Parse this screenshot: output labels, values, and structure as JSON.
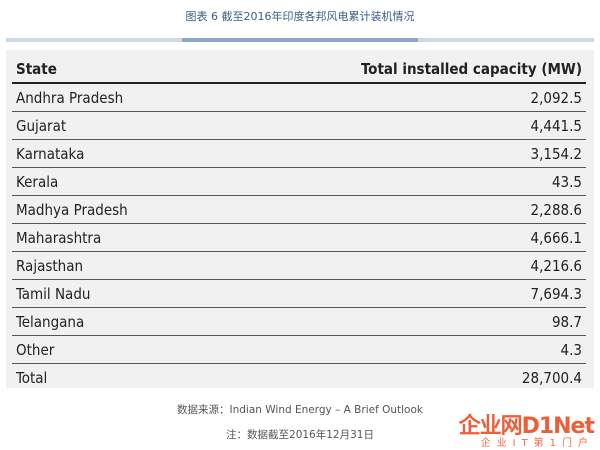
{
  "caption": "图表 6 截至2016年印度各邦风电累计装机情况",
  "table": {
    "headers": {
      "state": "State",
      "capacity": "Total installed capacity (MW)"
    },
    "rows": [
      {
        "state": "Andhra Pradesh",
        "capacity": "2,092.5"
      },
      {
        "state": "Gujarat",
        "capacity": "4,441.5"
      },
      {
        "state": "Karnataka",
        "capacity": "3,154.2"
      },
      {
        "state": "Kerala",
        "capacity": "43.5"
      },
      {
        "state": "Madhya Pradesh",
        "capacity": "2,288.6"
      },
      {
        "state": "Maharashtra",
        "capacity": "4,666.1"
      },
      {
        "state": "Rajasthan",
        "capacity": "4,216.6"
      },
      {
        "state": "Tamil Nadu",
        "capacity": "7,694.3"
      },
      {
        "state": "Telangana",
        "capacity": "98.7"
      },
      {
        "state": "Other",
        "capacity": "4.3"
      }
    ],
    "total": {
      "state": "Total",
      "capacity": "28,700.4"
    }
  },
  "source": "数据来源：Indian Wind Energy – A Brief Outlook",
  "note": "注：数据截至2016年12月31日",
  "watermark": {
    "brand": "企业网D1Net",
    "tagline": "企业IT第1门户"
  }
}
